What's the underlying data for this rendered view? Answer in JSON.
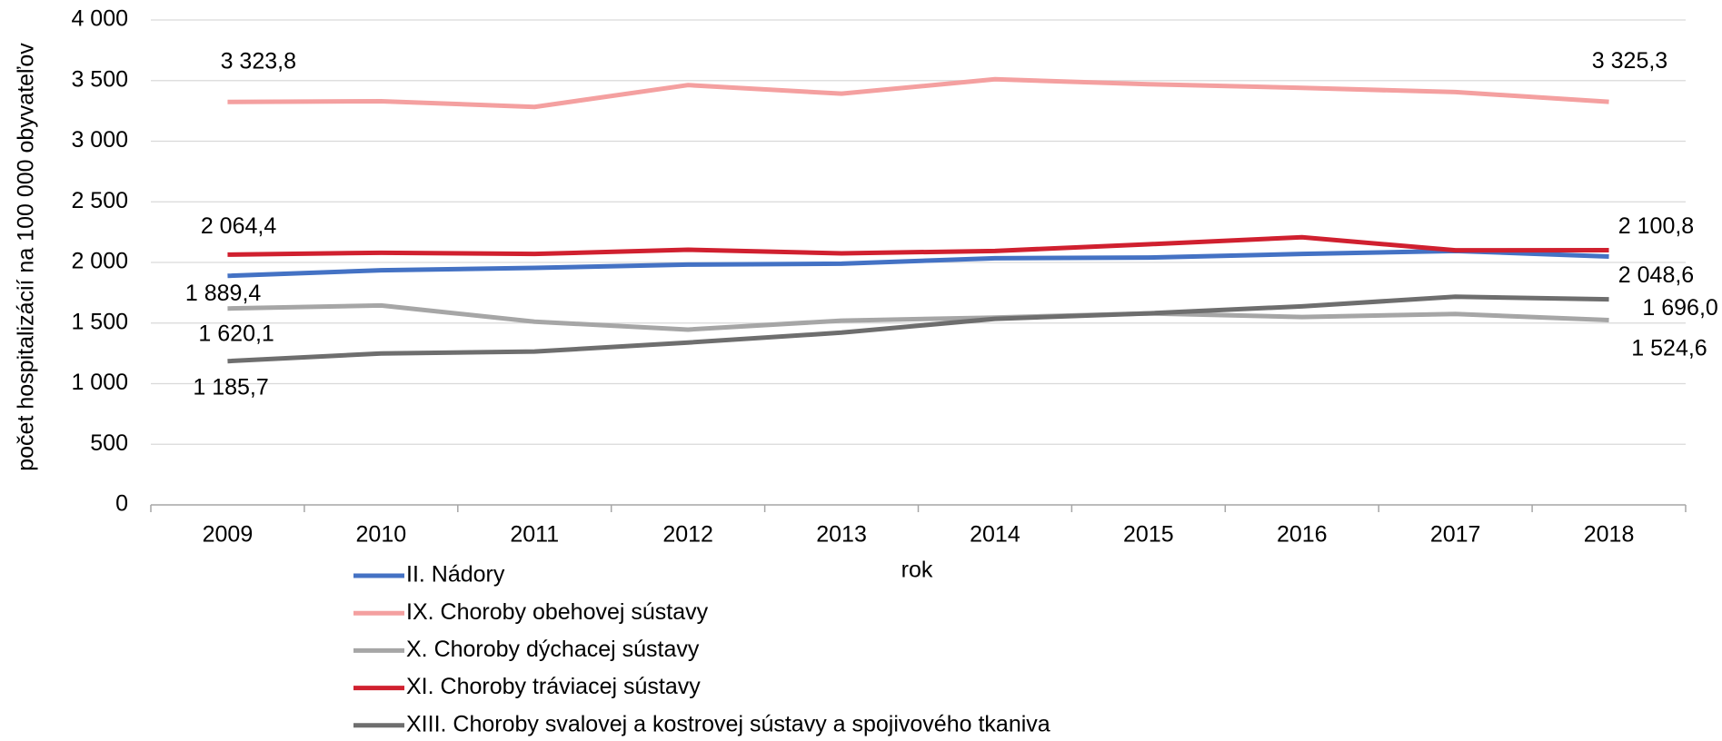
{
  "chart_data": {
    "type": "line",
    "y_label": "počet hospitalizácií na 100 000 obyvateľov",
    "x_label": "rok",
    "categories": [
      "2009",
      "2010",
      "2011",
      "2012",
      "2013",
      "2014",
      "2015",
      "2016",
      "2017",
      "2018"
    ],
    "series": [
      {
        "name": "II. Nádory",
        "color": "#4472c4",
        "values": [
          1889.4,
          1935,
          1955,
          1982,
          1990,
          2035,
          2040,
          2070,
          2095,
          2048.6
        ],
        "value_labels": [
          "1 889,4",
          null,
          null,
          null,
          null,
          null,
          null,
          null,
          null,
          "2 048,6"
        ]
      },
      {
        "name": "IX. Choroby obehovej sústavy",
        "color": "#f4a0a0",
        "values": [
          3323.8,
          3330,
          3283,
          3463,
          3392,
          3511,
          3470,
          3440,
          3405,
          3325.3
        ],
        "value_labels": [
          "3 323,8",
          null,
          null,
          null,
          null,
          null,
          null,
          null,
          null,
          "3 325,3"
        ]
      },
      {
        "name": "X. Choroby dýchacej sústavy",
        "color": "#a6a6a6",
        "values": [
          1620.1,
          1645,
          1511,
          1446,
          1520,
          1545,
          1580,
          1550,
          1575,
          1524.6
        ],
        "value_labels": [
          "1 620,1",
          null,
          null,
          null,
          null,
          null,
          null,
          null,
          null,
          "1 524,6"
        ]
      },
      {
        "name": "XI. Choroby tráviacej sústavy",
        "color": "#d0202f",
        "values": [
          2064.4,
          2080,
          2070,
          2105,
          2075,
          2095,
          2150,
          2208,
          2100,
          2100.8
        ],
        "value_labels": [
          "2 064,4",
          null,
          null,
          null,
          null,
          null,
          null,
          null,
          null,
          "2 100,8"
        ]
      },
      {
        "name": "XIII. Choroby svalovej a kostrovej sústavy a spojivového tkaniva",
        "color": "#6e6e6e",
        "values": [
          1185.7,
          1249,
          1265,
          1339,
          1421,
          1535,
          1580,
          1638,
          1717,
          1696.0
        ],
        "value_labels": [
          "1 185,7",
          null,
          null,
          null,
          null,
          null,
          null,
          null,
          null,
          "1 696,0"
        ]
      }
    ],
    "ylim": [
      0,
      4000
    ],
    "yticks": [
      0,
      500,
      {
        "value": 1000,
        "label": "1 000"
      },
      {
        "value": 1500,
        "label": "1 500"
      },
      {
        "value": 2000,
        "label": "2 000"
      },
      {
        "value": 2500,
        "label": "2 500"
      },
      {
        "value": 3000,
        "label": "3 000"
      },
      {
        "value": 3500,
        "label": "3 500"
      },
      {
        "value": 4000,
        "label": "4 000"
      }
    ],
    "grid": true
  }
}
